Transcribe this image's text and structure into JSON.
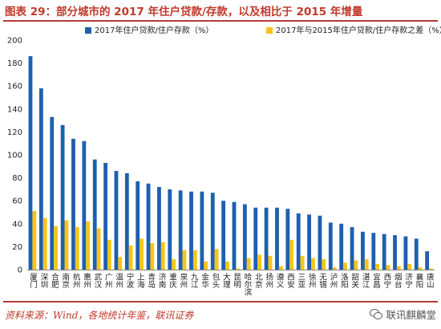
{
  "header": {
    "title": "图表 29：部分城市的 2017 年住户贷款/存款，以及相比于 2015 年增量"
  },
  "footer": {
    "source": "资料来源：Wind，各地统计年鉴，联讯证券",
    "watermark": "联讯麒麟堂"
  },
  "chart_data": {
    "type": "bar",
    "title": "图表 29：部分城市的 2017 年住户贷款/存款，以及相比于 2015 年增量",
    "ylim": [
      0,
      200
    ],
    "yticks": [
      0,
      20,
      40,
      60,
      80,
      100,
      120,
      140,
      160,
      180,
      200
    ],
    "grid": false,
    "legend_position": "top",
    "categories": [
      "厦门",
      "深圳",
      "合肥",
      "南京",
      "杭州",
      "惠州",
      "武汉",
      "广州",
      "温州",
      "宁波",
      "上海",
      "青岛",
      "济南",
      "重庆",
      "泉州",
      "九江",
      "金华",
      "包头",
      "大理",
      "昆明",
      "哈尔滨",
      "北京",
      "扬州",
      "遵义",
      "西安",
      "三亚",
      "徐州",
      "无锡",
      "泸州",
      "洛阳",
      "韶关",
      "湛江",
      "宜昌",
      "西宁",
      "烟台",
      "济宁",
      "襄阳",
      "唐山"
    ],
    "series": [
      {
        "name": "2017年住户贷款/住户存款（%）",
        "color": "#1f5fb0",
        "values": [
          186,
          158,
          133,
          126,
          114,
          112,
          96,
          93,
          86,
          84,
          77,
          75,
          72,
          70,
          69,
          68,
          68,
          67,
          60,
          59,
          57,
          54,
          54,
          54,
          53,
          49,
          48,
          47,
          41,
          40,
          37,
          33,
          32,
          31,
          30,
          29,
          27,
          16
        ]
      },
      {
        "name": "2017年与2015年住户贷款/住户存款之差（%）",
        "color": "#f5c518",
        "values": [
          51,
          45,
          38,
          43,
          37,
          42,
          36,
          26,
          11,
          21,
          27,
          23,
          24,
          9,
          17,
          17,
          7,
          18,
          7,
          1,
          10,
          13,
          12,
          3,
          26,
          12,
          10,
          9,
          2,
          6,
          8,
          9,
          5,
          4,
          3,
          5,
          2,
          1
        ]
      }
    ]
  }
}
